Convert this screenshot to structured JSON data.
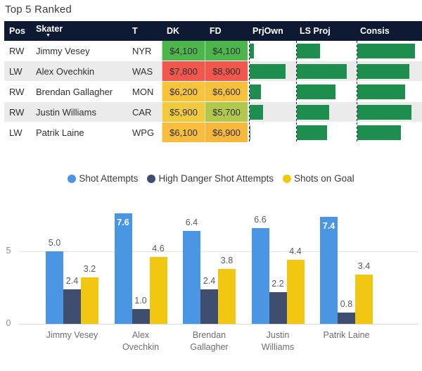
{
  "title": "Top 5 Ranked",
  "table": {
    "columns": {
      "pos": "Pos",
      "skater": "Skater",
      "team": "T",
      "dk": "DK",
      "fd": "FD",
      "prjown": "PrjOwn",
      "lsproj": "LS Proj",
      "consis": "Consis"
    },
    "sorted_column": "Skater",
    "sort_direction": "desc",
    "bar_color": "#1e8e4f",
    "header_bg": "#0e1a33",
    "rows": [
      {
        "pos": "RW",
        "skater": "Jimmy Vesey",
        "team": "NYR",
        "dk": "$4,100",
        "fd": "$4,100",
        "dk_color": "#4cb64c",
        "fd_color": "#4cb64c",
        "prjown_pct": 9,
        "lsproj_pct": 40,
        "consis_pct": 89
      },
      {
        "pos": "LW",
        "skater": "Alex Ovechkin",
        "team": "WAS",
        "dk": "$7,800",
        "fd": "$8,900",
        "dk_color": "#f1574d",
        "fd_color": "#f1574d",
        "prjown_pct": 80,
        "lsproj_pct": 85,
        "consis_pct": 80
      },
      {
        "pos": "RW",
        "skater": "Brendan Gallagher",
        "team": "MON",
        "dk": "$6,200",
        "fd": "$6,600",
        "dk_color": "#f8c43c",
        "fd_color": "#f8c13b",
        "prjown_pct": 25,
        "lsproj_pct": 66,
        "consis_pct": 74
      },
      {
        "pos": "RW",
        "skater": "Justin Williams",
        "team": "CAR",
        "dk": "$5,900",
        "fd": "$5,700",
        "dk_color": "#f2ca3e",
        "fd_color": "#b2c84c",
        "prjown_pct": 29,
        "lsproj_pct": 56,
        "consis_pct": 84
      },
      {
        "pos": "LW",
        "skater": "Patrik Laine",
        "team": "WPG",
        "dk": "$6,100",
        "fd": "$6,900",
        "dk_color": "#f8bd3c",
        "fd_color": "#f6b83a",
        "prjown_pct": 1,
        "lsproj_pct": 52,
        "consis_pct": 67
      }
    ]
  },
  "chart_data": {
    "type": "bar",
    "categories": [
      "Jimmy Vesey",
      "Alex Ovechkin",
      "Brendan Gallagher",
      "Justin Williams",
      "Patrik Laine"
    ],
    "series": [
      {
        "name": "Shot Attempts",
        "color": "#4a96e3",
        "values": [
          5.0,
          7.6,
          6.4,
          6.6,
          7.4
        ]
      },
      {
        "name": "High Danger Shot Attempts",
        "color": "#3f4e6e",
        "values": [
          2.4,
          1.0,
          2.4,
          2.2,
          0.8
        ]
      },
      {
        "name": "Shots on Goal",
        "color": "#f2c711",
        "values": [
          3.2,
          4.6,
          3.8,
          4.4,
          3.4
        ]
      }
    ],
    "xlabel": "",
    "ylabel": "",
    "y_ticks": [
      0,
      5
    ],
    "ylim": [
      0,
      8.5
    ],
    "grid": true,
    "legend_position": "top"
  }
}
